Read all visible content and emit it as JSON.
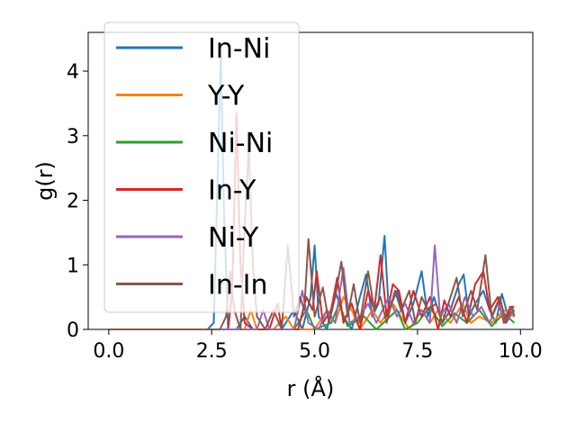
{
  "chart_data": {
    "type": "line",
    "xlabel": "r (Å)",
    "ylabel": "g(r)",
    "xlim": [
      -0.5,
      10.3
    ],
    "ylim": [
      0,
      4.6
    ],
    "xticks": [
      0.0,
      2.5,
      5.0,
      7.5,
      10.0
    ],
    "xtick_labels": [
      "0.0",
      "2.5",
      "5.0",
      "7.5",
      "10.0"
    ],
    "yticks": [
      0,
      1,
      2,
      3,
      4
    ],
    "ytick_labels": [
      "0",
      "1",
      "2",
      "3",
      "4"
    ],
    "grid": false,
    "legend_position": "top-left",
    "series": [
      {
        "name": "In-Ni",
        "color": "#1f77b4",
        "points": [
          [
            0,
            0
          ],
          [
            2.4,
            0
          ],
          [
            2.55,
            0.1
          ],
          [
            2.65,
            2.5
          ],
          [
            2.72,
            4.3
          ],
          [
            2.8,
            1.8
          ],
          [
            2.9,
            0
          ],
          [
            3.1,
            0
          ],
          [
            3.3,
            0.2
          ],
          [
            3.5,
            0
          ],
          [
            4.2,
            0
          ],
          [
            4.5,
            0.3
          ],
          [
            4.7,
            0
          ],
          [
            4.9,
            0.5
          ],
          [
            5.0,
            1.3
          ],
          [
            5.1,
            0.2
          ],
          [
            5.3,
            0
          ],
          [
            5.5,
            0.6
          ],
          [
            5.7,
            0.2
          ],
          [
            5.9,
            0
          ],
          [
            6.1,
            0.5
          ],
          [
            6.25,
            0.85
          ],
          [
            6.4,
            0.2
          ],
          [
            6.55,
            0.4
          ],
          [
            6.7,
            1.45
          ],
          [
            6.8,
            0.3
          ],
          [
            7.0,
            0.6
          ],
          [
            7.2,
            0.1
          ],
          [
            7.4,
            0.4
          ],
          [
            7.6,
            0.9
          ],
          [
            7.75,
            0.2
          ],
          [
            7.9,
            0.5
          ],
          [
            8.1,
            0.1
          ],
          [
            8.3,
            0.3
          ],
          [
            8.5,
            0.7
          ],
          [
            8.62,
            0.85
          ],
          [
            8.75,
            0.2
          ],
          [
            8.9,
            0.4
          ],
          [
            9.1,
            0.6
          ],
          [
            9.25,
            0.3
          ],
          [
            9.4,
            0.1
          ],
          [
            9.55,
            0.55
          ],
          [
            9.7,
            0.2
          ],
          [
            9.85,
            0.3
          ]
        ]
      },
      {
        "name": "Y-Y",
        "color": "#ff7f0e",
        "points": [
          [
            0,
            0
          ],
          [
            3.3,
            0
          ],
          [
            3.45,
            0.3
          ],
          [
            3.6,
            0
          ],
          [
            4.0,
            0
          ],
          [
            4.3,
            0.2
          ],
          [
            4.5,
            0
          ],
          [
            5.0,
            0
          ],
          [
            5.3,
            0.3
          ],
          [
            5.5,
            0.1
          ],
          [
            5.7,
            0.5
          ],
          [
            5.9,
            0.3
          ],
          [
            6.1,
            0
          ],
          [
            6.4,
            0.3
          ],
          [
            6.6,
            0.1
          ],
          [
            6.9,
            0.4
          ],
          [
            7.1,
            0.2
          ],
          [
            7.3,
            0
          ],
          [
            7.6,
            0.3
          ],
          [
            7.8,
            0.1
          ],
          [
            8.0,
            0.3
          ],
          [
            8.3,
            0.1
          ],
          [
            8.6,
            0.4
          ],
          [
            8.8,
            0.1
          ],
          [
            9.0,
            0.2
          ],
          [
            9.3,
            0.1
          ],
          [
            9.6,
            0.3
          ],
          [
            9.85,
            0.2
          ]
        ]
      },
      {
        "name": "Ni-Ni",
        "color": "#2ca02c",
        "points": [
          [
            0,
            0
          ],
          [
            4.5,
            0
          ],
          [
            4.8,
            0.3
          ],
          [
            5.0,
            0
          ],
          [
            5.4,
            0.1
          ],
          [
            5.6,
            0.4
          ],
          [
            5.8,
            0.05
          ],
          [
            6.2,
            0.2
          ],
          [
            6.5,
            0
          ],
          [
            7.0,
            0.3
          ],
          [
            7.2,
            0
          ],
          [
            7.5,
            0.1
          ],
          [
            7.8,
            0.35
          ],
          [
            8.1,
            0.05
          ],
          [
            8.4,
            0.25
          ],
          [
            8.7,
            0.1
          ],
          [
            9.0,
            0.3
          ],
          [
            9.3,
            0.05
          ],
          [
            9.6,
            0.25
          ],
          [
            9.85,
            0.1
          ]
        ]
      },
      {
        "name": "In-Y",
        "color": "#d62728",
        "points": [
          [
            0,
            0
          ],
          [
            2.9,
            0
          ],
          [
            3.0,
            0.6
          ],
          [
            3.1,
            3.35
          ],
          [
            3.2,
            1.0
          ],
          [
            3.3,
            0.1
          ],
          [
            3.5,
            0
          ],
          [
            3.9,
            0
          ],
          [
            4.1,
            0.4
          ],
          [
            4.2,
            0
          ],
          [
            4.6,
            0
          ],
          [
            4.8,
            0.5
          ],
          [
            4.95,
            0.3
          ],
          [
            5.05,
            0.9
          ],
          [
            5.2,
            0.1
          ],
          [
            5.4,
            0.3
          ],
          [
            5.55,
            0.8
          ],
          [
            5.7,
            0.1
          ],
          [
            5.9,
            0.4
          ],
          [
            6.1,
            0
          ],
          [
            6.3,
            0.6
          ],
          [
            6.45,
            0.3
          ],
          [
            6.6,
            1.15
          ],
          [
            6.75,
            0.2
          ],
          [
            6.9,
            0.7
          ],
          [
            7.05,
            0.6
          ],
          [
            7.2,
            0.1
          ],
          [
            7.4,
            0.6
          ],
          [
            7.6,
            0.2
          ],
          [
            7.8,
            0.5
          ],
          [
            8.0,
            0
          ],
          [
            8.15,
            0.45
          ],
          [
            8.3,
            0.2
          ],
          [
            8.5,
            0.5
          ],
          [
            8.7,
            0.1
          ],
          [
            8.9,
            0.7
          ],
          [
            9.1,
            0.9
          ],
          [
            9.25,
            0.3
          ],
          [
            9.45,
            0.5
          ],
          [
            9.6,
            0.1
          ],
          [
            9.75,
            0.35
          ],
          [
            9.85,
            0.35
          ]
        ]
      },
      {
        "name": "Ni-Y",
        "color": "#9467bd",
        "points": [
          [
            0,
            0
          ],
          [
            3.6,
            0
          ],
          [
            3.75,
            0.3
          ],
          [
            3.9,
            0
          ],
          [
            4.5,
            0
          ],
          [
            4.7,
            0.6
          ],
          [
            4.85,
            0.1
          ],
          [
            5.1,
            0
          ],
          [
            5.3,
            0.3
          ],
          [
            5.5,
            0.1
          ],
          [
            5.7,
            0.95
          ],
          [
            5.85,
            0.1
          ],
          [
            6.1,
            0.2
          ],
          [
            6.3,
            0.4
          ],
          [
            6.5,
            0.1
          ],
          [
            6.8,
            0.5
          ],
          [
            7.0,
            0.2
          ],
          [
            7.2,
            0.4
          ],
          [
            7.4,
            0.1
          ],
          [
            7.6,
            0.3
          ],
          [
            7.8,
            0.1
          ],
          [
            7.92,
            1.3
          ],
          [
            8.05,
            0.2
          ],
          [
            8.25,
            0.4
          ],
          [
            8.45,
            0.1
          ],
          [
            8.65,
            0.5
          ],
          [
            8.85,
            0.2
          ],
          [
            9.05,
            0.35
          ],
          [
            9.25,
            0.1
          ],
          [
            9.45,
            0.4
          ],
          [
            9.65,
            0.1
          ],
          [
            9.85,
            0.3
          ]
        ]
      },
      {
        "name": "In-In",
        "color": "#8c564b",
        "points": [
          [
            0,
            0
          ],
          [
            2.7,
            0
          ],
          [
            2.85,
            0.2
          ],
          [
            2.95,
            0.9
          ],
          [
            3.05,
            0.3
          ],
          [
            3.2,
            0
          ],
          [
            3.3,
            1.6
          ],
          [
            3.4,
            2.8
          ],
          [
            3.5,
            1.0
          ],
          [
            3.6,
            0.2
          ],
          [
            3.8,
            0
          ],
          [
            4.0,
            0.3
          ],
          [
            4.2,
            0
          ],
          [
            4.35,
            1.3
          ],
          [
            4.5,
            0.2
          ],
          [
            4.65,
            0.5
          ],
          [
            4.75,
            0.3
          ],
          [
            4.85,
            1.4
          ],
          [
            5.0,
            0.2
          ],
          [
            5.2,
            0.65
          ],
          [
            5.35,
            0.1
          ],
          [
            5.5,
            0.5
          ],
          [
            5.65,
            1.05
          ],
          [
            5.8,
            0.2
          ],
          [
            5.95,
            0.7
          ],
          [
            6.1,
            0.1
          ],
          [
            6.3,
            0.9
          ],
          [
            6.45,
            0.3
          ],
          [
            6.6,
            0.5
          ],
          [
            6.75,
            0.1
          ],
          [
            6.95,
            0.6
          ],
          [
            7.1,
            0.3
          ],
          [
            7.3,
            0.6
          ],
          [
            7.45,
            0.1
          ],
          [
            7.6,
            0.5
          ],
          [
            7.75,
            0.3
          ],
          [
            7.95,
            0.4
          ],
          [
            8.1,
            0.1
          ],
          [
            8.3,
            0.5
          ],
          [
            8.45,
            0.8
          ],
          [
            8.6,
            0.2
          ],
          [
            8.8,
            0.6
          ],
          [
            8.95,
            0.3
          ],
          [
            9.15,
            1.15
          ],
          [
            9.3,
            0.2
          ],
          [
            9.5,
            0.5
          ],
          [
            9.65,
            0.1
          ],
          [
            9.8,
            0.35
          ],
          [
            9.85,
            0.2
          ]
        ]
      }
    ]
  }
}
